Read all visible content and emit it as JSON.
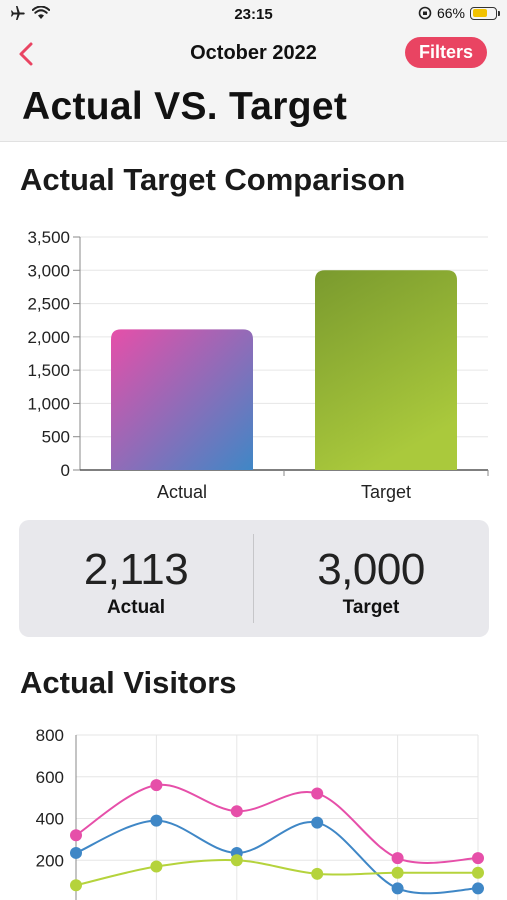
{
  "status_bar": {
    "time": "23:15",
    "battery": "66%",
    "battery_level": 0.66
  },
  "nav": {
    "title": "October 2022",
    "filters_label": "Filters"
  },
  "page": {
    "title": "Actual VS. Target"
  },
  "comparison": {
    "title": "Actual Target Comparison",
    "actual_value": "2,113",
    "actual_label": "Actual",
    "target_value": "3,000",
    "target_label": "Target"
  },
  "visitors": {
    "title": "Actual Visitors"
  },
  "chart_data": [
    {
      "type": "bar",
      "title": "Actual Target Comparison",
      "categories": [
        "Actual",
        "Target"
      ],
      "values": [
        2113,
        3000
      ],
      "ylim": [
        0,
        3500
      ],
      "yticks": [
        0,
        500,
        1000,
        1500,
        2000,
        2500,
        3000,
        3500
      ],
      "ytick_labels": [
        "0",
        "500",
        "1,000",
        "1,500",
        "2,000",
        "2,500",
        "3,000",
        "3,500"
      ],
      "grid": true,
      "colors": {
        "actual": [
          "#e64fa9",
          "#3f87c6"
        ],
        "target": [
          "#7a9a2e",
          "#aac93c"
        ]
      }
    },
    {
      "type": "line",
      "title": "Actual Visitors",
      "x": [
        1,
        2,
        3,
        4,
        5,
        6
      ],
      "ylim": [
        0,
        800
      ],
      "yticks": [
        200,
        400,
        600,
        800
      ],
      "ytick_labels": [
        "200",
        "400",
        "600",
        "800"
      ],
      "grid": true,
      "series": [
        {
          "color": "#e64fa9",
          "values": [
            320,
            560,
            435,
            520,
            210,
            210
          ]
        },
        {
          "color": "#3f87c6",
          "values": [
            235,
            390,
            235,
            380,
            65,
            65
          ]
        },
        {
          "color": "#b5d33c",
          "values": [
            80,
            170,
            200,
            135,
            140,
            140
          ]
        }
      ]
    }
  ]
}
